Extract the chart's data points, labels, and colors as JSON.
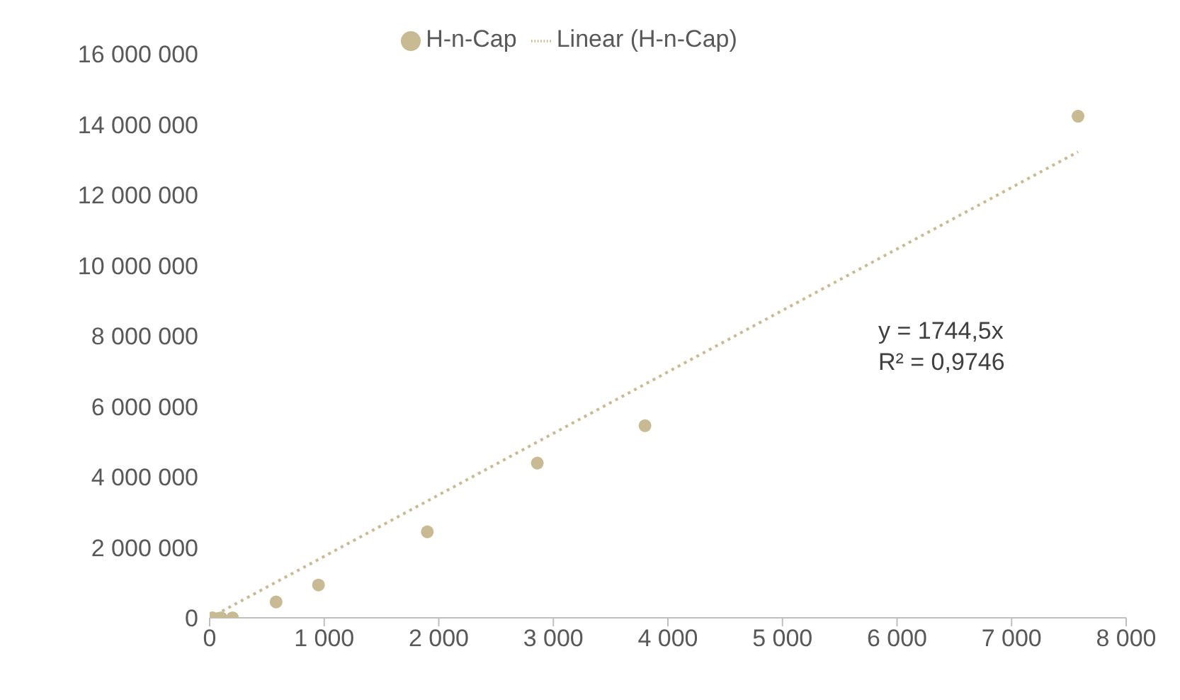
{
  "chart_data": {
    "type": "scatter",
    "legend": "top",
    "grid": false,
    "marker": "circle",
    "xlim": [
      0,
      8000
    ],
    "xticks": [
      0,
      {
        "value": 1000,
        "label": "1 000"
      },
      {
        "value": 2000,
        "label": "2 000"
      },
      {
        "value": 3000,
        "label": "3 000"
      },
      {
        "value": 4000,
        "label": "4 000"
      },
      {
        "value": 5000,
        "label": "5 000"
      },
      {
        "value": 6000,
        "label": "6 000"
      },
      {
        "value": 7000,
        "label": "7 000"
      },
      {
        "value": 8000,
        "label": "8 000"
      }
    ],
    "ylim": [
      0,
      16000000
    ],
    "yticks": [
      0,
      {
        "value": 2000000,
        "label": "2 000 000"
      },
      {
        "value": 4000000,
        "label": "4 000 000"
      },
      {
        "value": 6000000,
        "label": "6 000 000"
      },
      {
        "value": 8000000,
        "label": "8 000 000"
      },
      {
        "value": 10000000,
        "label": "10 000 000"
      },
      {
        "value": 12000000,
        "label": "12 000 000"
      },
      {
        "value": 14000000,
        "label": "14 000 000"
      },
      {
        "value": 16000000,
        "label": "16 000 000"
      }
    ],
    "series": [
      {
        "name": "H-n-Cap",
        "color": "#c8bb93",
        "x": [
          25,
          100,
          200,
          580,
          950,
          1900,
          2860,
          3800,
          7580
        ],
        "values": [
          0,
          0,
          0,
          450000,
          930000,
          2440000,
          4390000,
          5450000,
          14230000
        ]
      },
      {
        "name": "Linear (H-n-Cap)",
        "type": "line",
        "line_style": "dotted",
        "marker": "none",
        "color": "#c8bb93",
        "x": [
          0,
          7580
        ],
        "values": [
          0,
          13220000
        ]
      }
    ],
    "annotations": [
      "y = 1744,5x",
      "R² = 0,9746"
    ]
  }
}
